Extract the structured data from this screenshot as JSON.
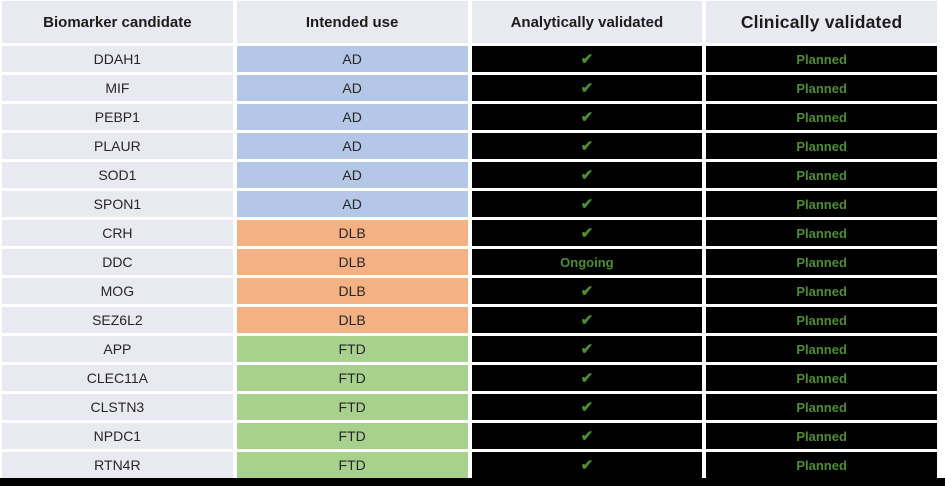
{
  "header": {
    "columns": [
      {
        "id": "biomarker",
        "label": "Biomarker candidate"
      },
      {
        "id": "use",
        "label": "Intended use"
      },
      {
        "id": "analytical",
        "label": "Analytically validated"
      },
      {
        "id": "clinical",
        "label": "Clinically validated"
      }
    ]
  },
  "rows": [
    {
      "biomarker": "DDAH1",
      "use": "AD",
      "analytical": "check",
      "clinical": "Planned"
    },
    {
      "biomarker": "MIF",
      "use": "AD",
      "analytical": "check",
      "clinical": "Planned"
    },
    {
      "biomarker": "PEBP1",
      "use": "AD",
      "analytical": "check",
      "clinical": "Planned"
    },
    {
      "biomarker": "PLAUR",
      "use": "AD",
      "analytical": "check",
      "clinical": "Planned"
    },
    {
      "biomarker": "SOD1",
      "use": "AD",
      "analytical": "check",
      "clinical": "Planned"
    },
    {
      "biomarker": "SPON1",
      "use": "AD",
      "analytical": "check",
      "clinical": "Planned"
    },
    {
      "biomarker": "CRH",
      "use": "DLB",
      "analytical": "check",
      "clinical": "Planned"
    },
    {
      "biomarker": "DDC",
      "use": "DLB",
      "analytical": "Ongoing",
      "clinical": "Planned"
    },
    {
      "biomarker": "MOG",
      "use": "DLB",
      "analytical": "check",
      "clinical": "Planned"
    },
    {
      "biomarker": "SEZ6L2",
      "use": "DLB",
      "analytical": "check",
      "clinical": "Planned"
    },
    {
      "biomarker": "APP",
      "use": "FTD",
      "analytical": "check",
      "clinical": "Planned"
    },
    {
      "biomarker": "CLEC11A",
      "use": "FTD",
      "analytical": "check",
      "clinical": "Planned"
    },
    {
      "biomarker": "CLSTN3",
      "use": "FTD",
      "analytical": "check",
      "clinical": "Planned"
    },
    {
      "biomarker": "NPDC1",
      "use": "FTD",
      "analytical": "check",
      "clinical": "Planned"
    },
    {
      "biomarker": "RTN4R",
      "use": "FTD",
      "analytical": "check",
      "clinical": "Planned"
    }
  ],
  "icons": {
    "check": "✔"
  },
  "colors": {
    "header_bg": "#E9E9F2",
    "biomarker_bg": "#E9E9F2",
    "use_AD": "#B4C7E7",
    "use_DLB": "#F4B183",
    "use_FTD": "#A9D18E",
    "validation_bg": "#000000",
    "status_green": "#4E8C35",
    "bottom_bar": "#000000"
  }
}
